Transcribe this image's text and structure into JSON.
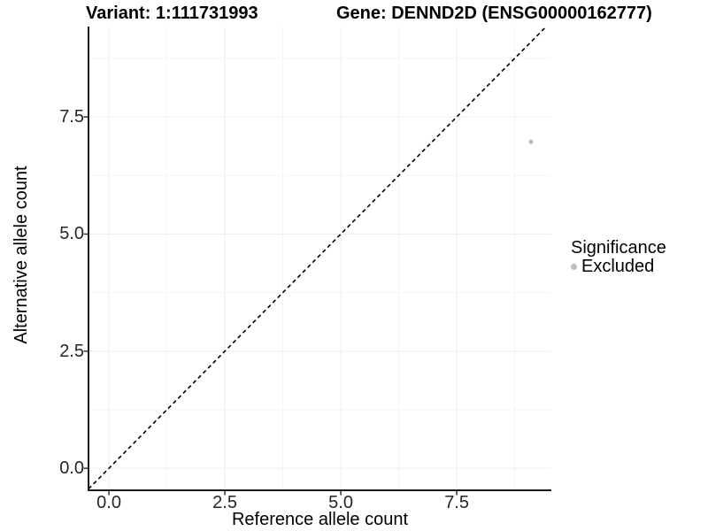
{
  "header": {
    "variant_label": "Variant: 1:111731993",
    "gene_label": "Gene: DENND2D (ENSG00000162777)"
  },
  "chart_data": {
    "type": "scatter",
    "title": "Variant: 1:111731993   Gene: DENND2D (ENSG00000162777)",
    "xlabel": "Reference allele count",
    "ylabel": "Alternative allele count",
    "xlim": [
      -0.44,
      9.54
    ],
    "ylim": [
      -0.45,
      9.41
    ],
    "x_ticks": [
      {
        "value": 0,
        "label": "0.0"
      },
      {
        "value": 2.5,
        "label": "2.5"
      },
      {
        "value": 5,
        "label": "5.0"
      },
      {
        "value": 7.5,
        "label": "7.5"
      }
    ],
    "y_ticks": [
      {
        "value": 0,
        "label": "0.0"
      },
      {
        "value": 2.5,
        "label": "2.5"
      },
      {
        "value": 5,
        "label": "5.0"
      },
      {
        "value": 7.5,
        "label": "7.5"
      }
    ],
    "x_minor": [
      1.25,
      3.75,
      6.25,
      8.75
    ],
    "y_minor": [
      1.25,
      3.75,
      6.25,
      8.75
    ],
    "grid": {
      "on": true,
      "major_color": "#ededed",
      "minor_color": "#f5f5f5"
    },
    "series": [
      {
        "name": "Excluded",
        "color": "#bebebe",
        "points": [
          {
            "x": 9.1,
            "y": 6.97
          }
        ]
      }
    ],
    "point_radius": 2.6,
    "reference_line": {
      "kind": "abline",
      "slope": 1,
      "intercept": 0,
      "style": "dashed",
      "color": "#000000",
      "dash": "4.5,3.5",
      "width": 1.6
    },
    "axis": {
      "line_color": "#1a1a1a",
      "tick_color": "#333333"
    },
    "legend": {
      "position": "right",
      "title": "Significance",
      "entries": [
        {
          "label": "Excluded",
          "color": "#bebebe"
        }
      ]
    }
  }
}
